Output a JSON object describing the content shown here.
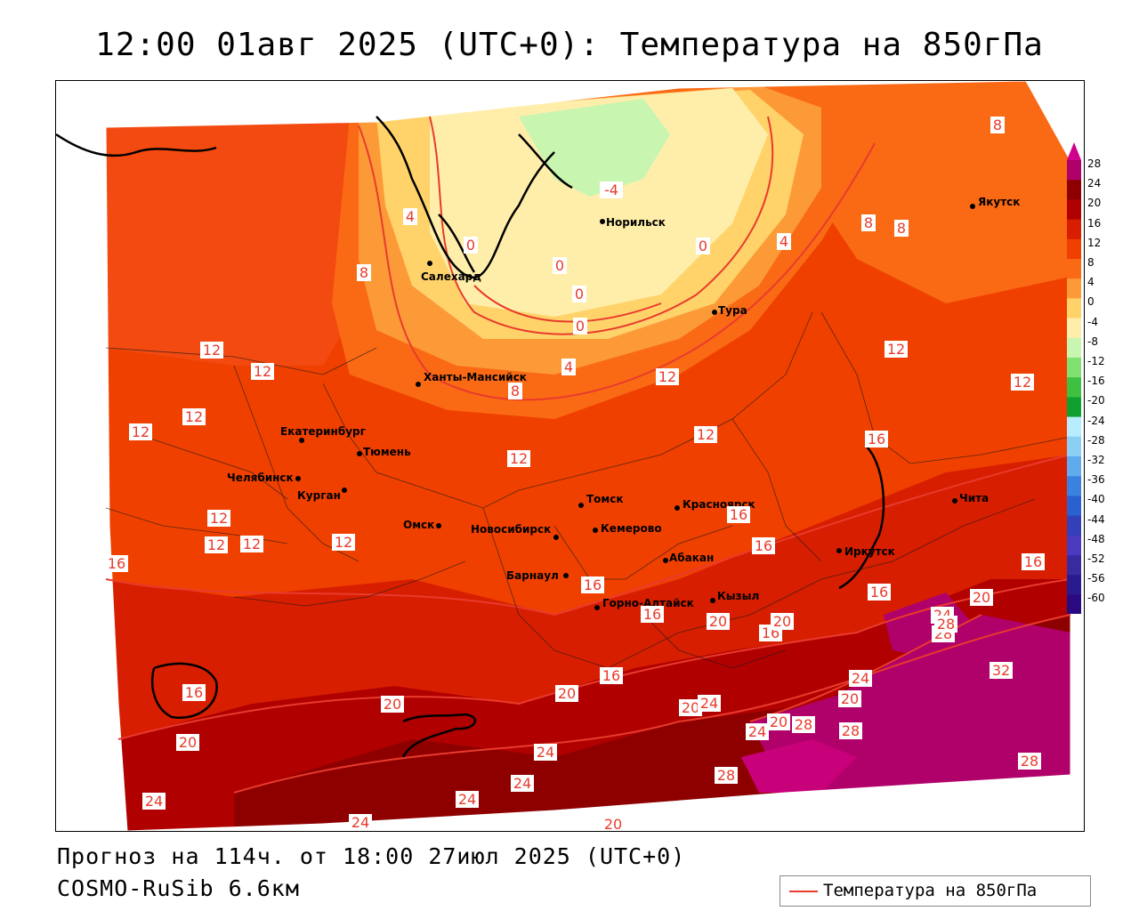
{
  "title": "12:00 01авг 2025 (UTC+0): Температура на 850гПа",
  "footer": {
    "forecast": "Прогноз на 114ч. от 18:00 27июл 2025 (UTC+0)",
    "model": "COSMO-RuSib 6.6км"
  },
  "legend": {
    "label": "Температура на 850гПа",
    "line_color": "#e83b2d"
  },
  "colorbar": {
    "labels": [
      "28",
      "24",
      "20",
      "16",
      "12",
      "8",
      "4",
      "0",
      "-4",
      "-8",
      "-12",
      "-16",
      "-20",
      "-24",
      "-28",
      "-32",
      "-36",
      "-40",
      "-44",
      "-48",
      "-52",
      "-56",
      "-60"
    ],
    "colors": [
      "#b0006a",
      "#8e0000",
      "#b00000",
      "#d81e00",
      "#f04000",
      "#fa6a14",
      "#fd9a38",
      "#ffd36a",
      "#ffeeaa",
      "#c8f5b0",
      "#80e070",
      "#40c040",
      "#10a030",
      "#b8ecff",
      "#8ccff5",
      "#60aaee",
      "#3a82e0",
      "#2a60d0",
      "#3440b8",
      "#4a3ac0",
      "#3a2aa0",
      "#2a1a90",
      "#2a0a80"
    ]
  },
  "cities": [
    {
      "name": "Норильск"
    },
    {
      "name": "Салехард"
    },
    {
      "name": "Тура"
    },
    {
      "name": "Якутск"
    },
    {
      "name": "Ханты-Мансийск"
    },
    {
      "name": "Екатеринбург"
    },
    {
      "name": "Тюмень"
    },
    {
      "name": "Челябинск"
    },
    {
      "name": "Курган"
    },
    {
      "name": "Омск"
    },
    {
      "name": "Новосибирск"
    },
    {
      "name": "Томск"
    },
    {
      "name": "Кемерово"
    },
    {
      "name": "Красноярск"
    },
    {
      "name": "Барнаул"
    },
    {
      "name": "Абакан"
    },
    {
      "name": "Горно-Алтайск"
    },
    {
      "name": "Кызыл"
    },
    {
      "name": "Иркутск"
    },
    {
      "name": "Чита"
    }
  ],
  "contour_labels": [
    "-4",
    "0",
    "0",
    "0",
    "0",
    "0",
    "4",
    "4",
    "4",
    "8",
    "8",
    "8",
    "8",
    "8",
    "12",
    "12",
    "12",
    "12",
    "12",
    "12",
    "12",
    "12",
    "12",
    "12",
    "12",
    "12",
    "12",
    "16",
    "16",
    "16",
    "16",
    "16",
    "16",
    "16",
    "16",
    "16",
    "16",
    "16",
    "20",
    "20",
    "20",
    "20",
    "20",
    "20",
    "20",
    "20",
    "20",
    "20",
    "24",
    "24",
    "24",
    "24",
    "24",
    "24",
    "24",
    "24",
    "24",
    "28",
    "28",
    "28",
    "28",
    "28",
    "28",
    "32"
  ]
}
